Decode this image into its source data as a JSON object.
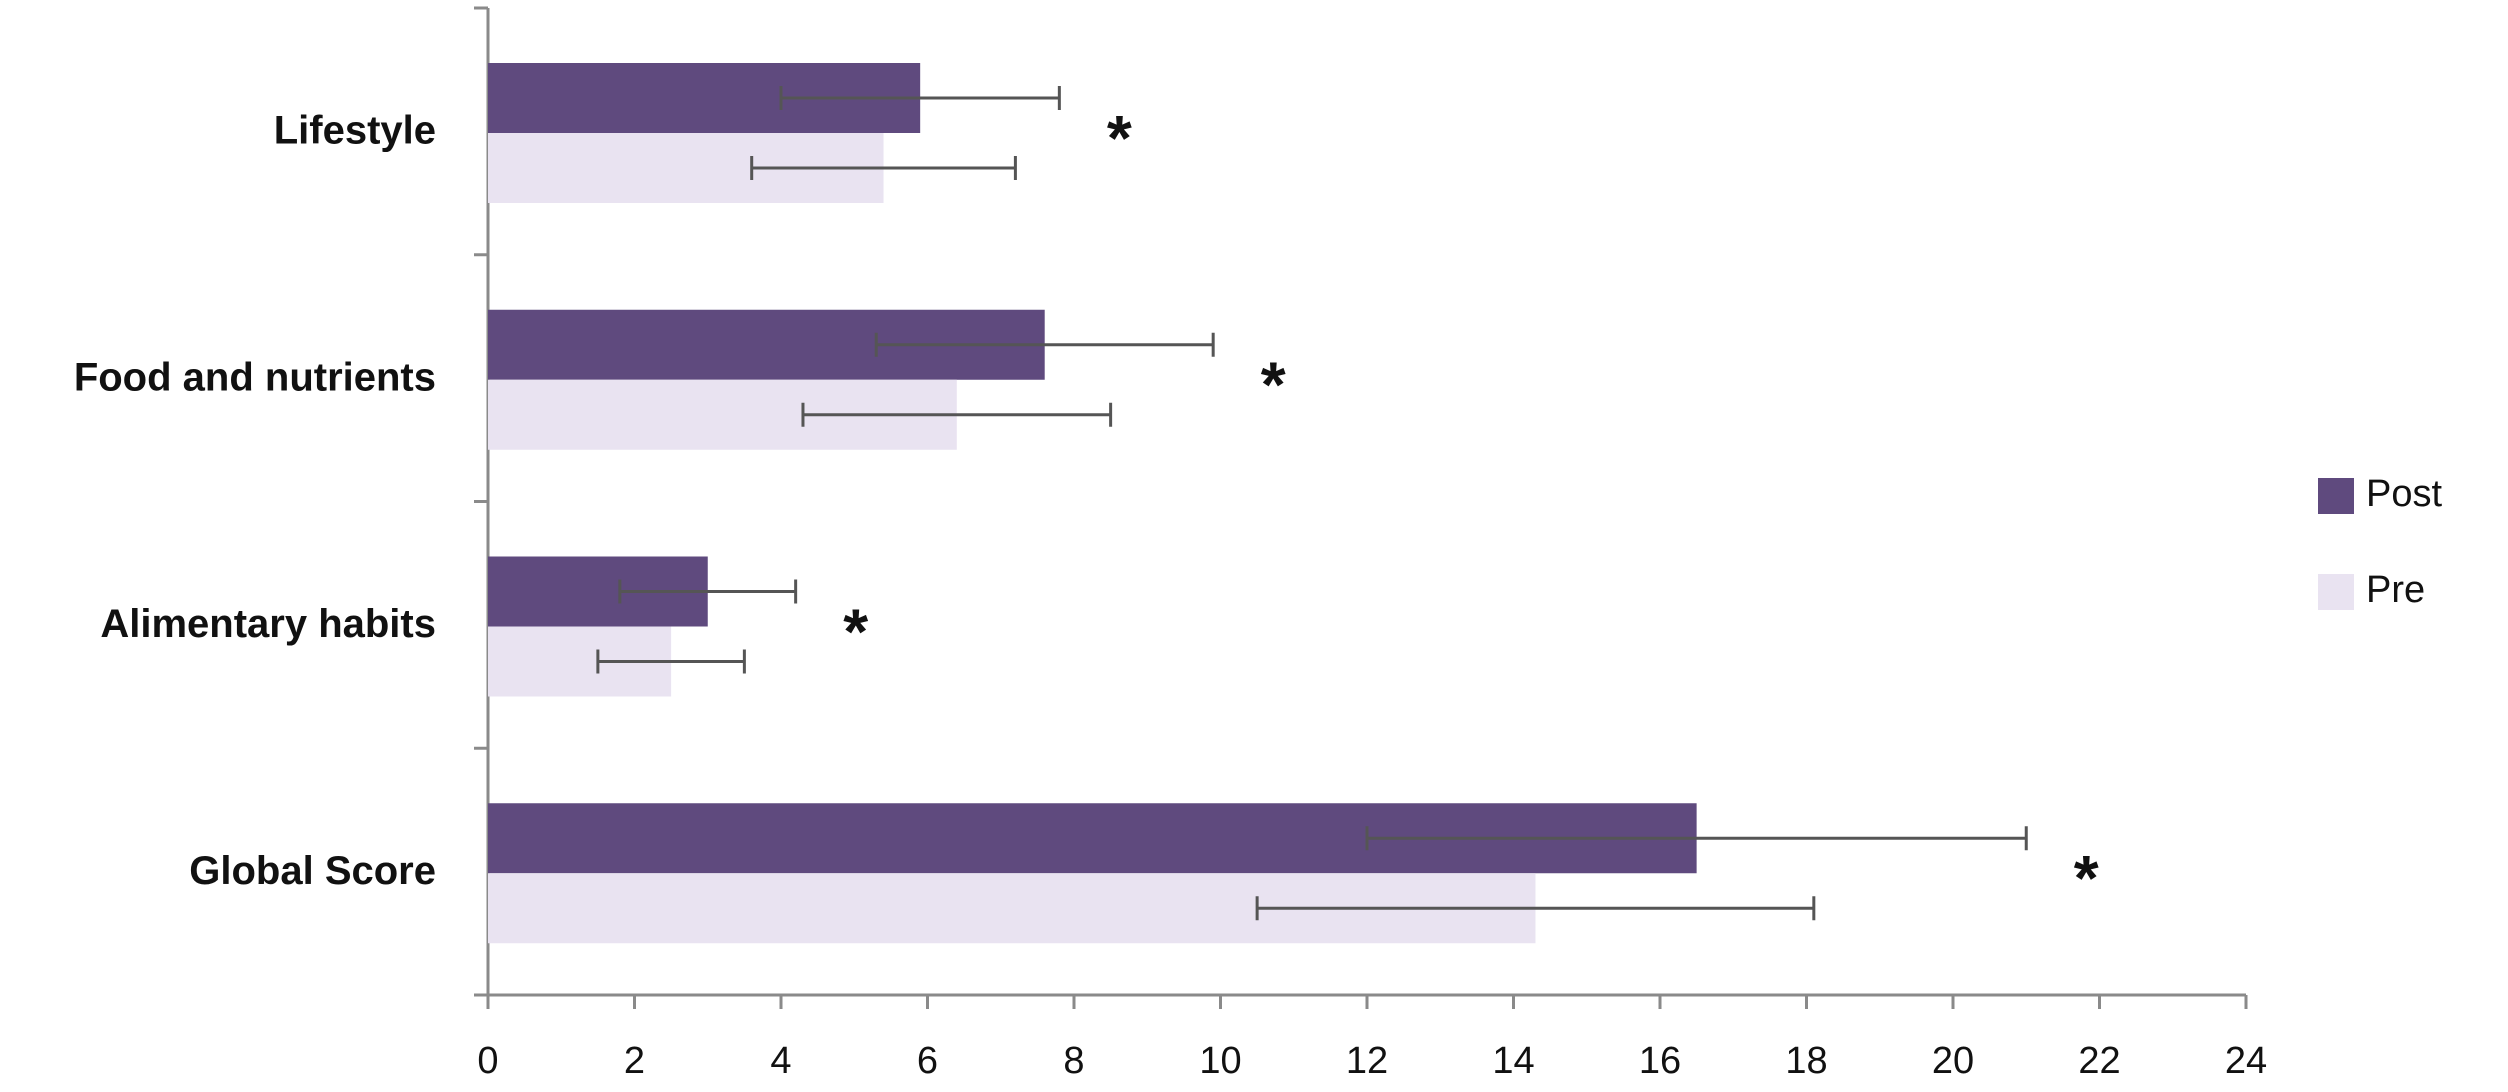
{
  "chart_data": {
    "type": "bar",
    "orientation": "horizontal",
    "categories": [
      "Lifestyle",
      "Food and nutrients",
      "Alimentary habits",
      "Global Score"
    ],
    "series": [
      {
        "name": "Post",
        "color": "#5f4a7e",
        "values": [
          5.9,
          7.6,
          3.0,
          16.5
        ],
        "errors": [
          1.9,
          2.3,
          1.2,
          4.5
        ]
      },
      {
        "name": "Pre",
        "color": "#e9e3f1",
        "values": [
          5.4,
          6.4,
          2.5,
          14.3
        ],
        "errors": [
          1.8,
          2.1,
          1.0,
          3.8
        ]
      }
    ],
    "annotations": [
      "*",
      "*",
      "*",
      "*"
    ],
    "xlim": [
      0,
      24
    ],
    "xticks": [
      0,
      2,
      4,
      6,
      8,
      10,
      12,
      14,
      16,
      18,
      20,
      22,
      24
    ],
    "legend": "right"
  }
}
